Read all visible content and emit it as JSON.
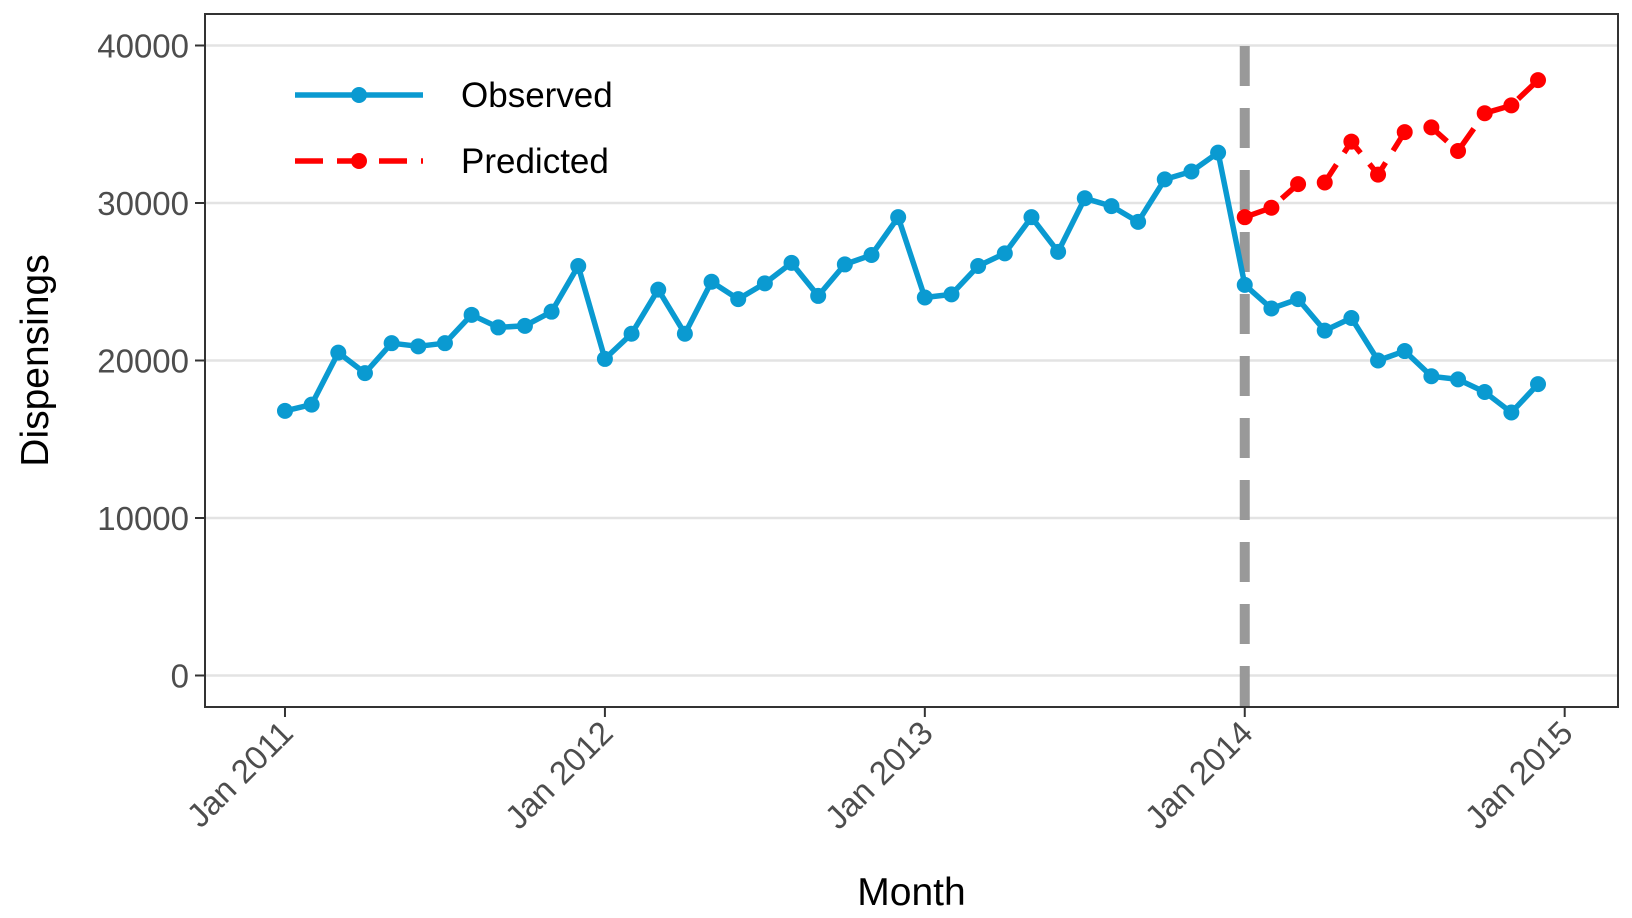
{
  "chart_data": {
    "type": "line",
    "title": "",
    "xlabel": "Month",
    "ylabel": "Dispensings",
    "ylim": [
      -2000,
      42000
    ],
    "xlim": [
      "2010-10",
      "2015-03"
    ],
    "grid": true,
    "legend_placement": "top-left",
    "y_ticks": [
      {
        "value": 0,
        "label": "0"
      },
      {
        "value": 10000,
        "label": "10000"
      },
      {
        "value": 20000,
        "label": "20000"
      },
      {
        "value": 30000,
        "label": "30000"
      },
      {
        "value": 40000,
        "label": "40000"
      }
    ],
    "x_ticks": [
      {
        "value": "2011-01",
        "label": "Jan 2011"
      },
      {
        "value": "2012-01",
        "label": "Jan 2012"
      },
      {
        "value": "2013-01",
        "label": "Jan 2013"
      },
      {
        "value": "2014-01",
        "label": "Jan 2014"
      },
      {
        "value": "2015-01",
        "label": "Jan 2015"
      }
    ],
    "intervention": {
      "x": "2014-01",
      "color": "#999999"
    },
    "series": [
      {
        "name": "Observed",
        "color": "#0a9ad1",
        "dash": "solid",
        "x": [
          "2011-01",
          "2011-02",
          "2011-03",
          "2011-04",
          "2011-05",
          "2011-06",
          "2011-07",
          "2011-08",
          "2011-09",
          "2011-10",
          "2011-11",
          "2011-12",
          "2012-01",
          "2012-02",
          "2012-03",
          "2012-04",
          "2012-05",
          "2012-06",
          "2012-07",
          "2012-08",
          "2012-09",
          "2012-10",
          "2012-11",
          "2012-12",
          "2013-01",
          "2013-02",
          "2013-03",
          "2013-04",
          "2013-05",
          "2013-06",
          "2013-07",
          "2013-08",
          "2013-09",
          "2013-10",
          "2013-11",
          "2013-12",
          "2014-01",
          "2014-02",
          "2014-03",
          "2014-04",
          "2014-05",
          "2014-06",
          "2014-07",
          "2014-08",
          "2014-09",
          "2014-10",
          "2014-11",
          "2014-12"
        ],
        "values": [
          16800,
          17200,
          20500,
          19200,
          21100,
          20900,
          21100,
          22900,
          22100,
          22200,
          23100,
          26000,
          20100,
          21700,
          24500,
          21700,
          25000,
          23900,
          24900,
          26200,
          24100,
          26100,
          26700,
          29100,
          24000,
          24200,
          26000,
          26800,
          29100,
          26900,
          30300,
          29800,
          28800,
          31500,
          32000,
          33200,
          24800,
          23300,
          23900,
          21900,
          22700,
          20000,
          20600,
          19000,
          18800,
          18000,
          16700,
          18500
        ]
      },
      {
        "name": "Predicted",
        "color": "#ff0000",
        "dash": "dashed",
        "x": [
          "2014-01",
          "2014-02",
          "2014-03",
          "2014-04",
          "2014-05",
          "2014-06",
          "2014-07",
          "2014-08",
          "2014-09",
          "2014-10",
          "2014-11",
          "2014-12"
        ],
        "values": [
          29100,
          29700,
          31200,
          31300,
          33900,
          31800,
          34500,
          34800,
          33300,
          35700,
          36200,
          37800
        ]
      }
    ]
  }
}
